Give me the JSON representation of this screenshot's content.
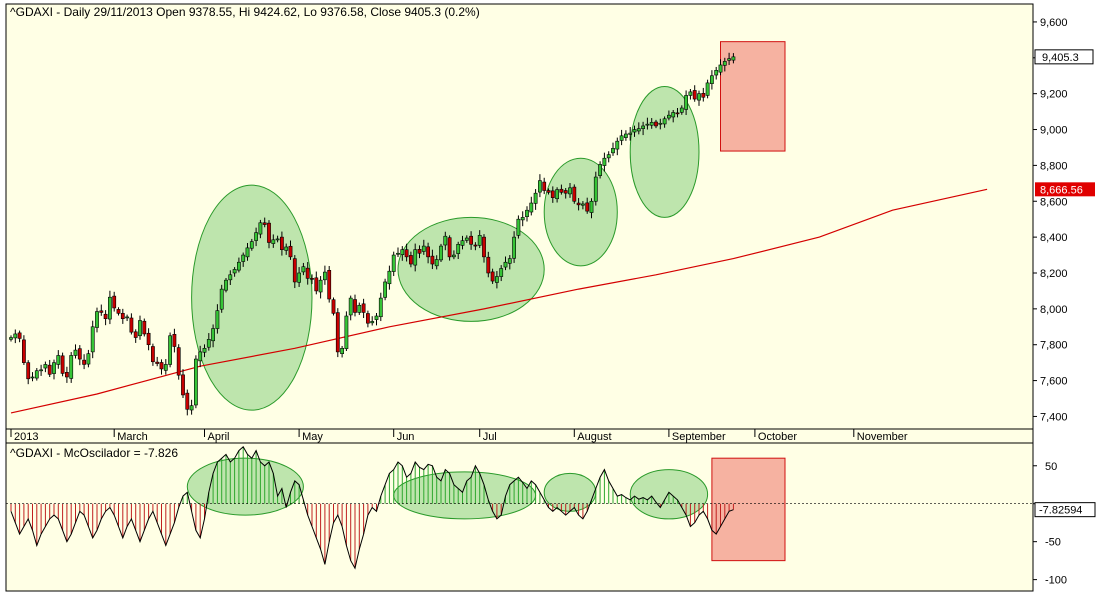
{
  "colors": {
    "panel_bg": "#ffffe5",
    "frame": "#000000",
    "ma_line": "#d40000",
    "candle_up": "#36c436",
    "candle_down": "#c80000",
    "osc_pos": "#2ea82e",
    "osc_neg": "#c02020",
    "ellipse_fill": "#a8dc9a",
    "ellipse_stroke": "#2a9a2a",
    "box_fill": "#f5a595",
    "box_stroke": "#d01010",
    "tag_bg": "#ffffff",
    "ma_tag_bg": "#e00000"
  },
  "chart_data": [
    {
      "type": "candlestick",
      "title": "^GDAXI - Daily 29/11/2013 Open 9378.55, Hi 9424.62, Lo 9376.58, Close 9405.3 (0.2%)",
      "ylim": [
        7330,
        9700
      ],
      "y_ticks": [
        7400,
        7600,
        7800,
        8000,
        8200,
        8400,
        8600,
        8800,
        9000,
        9200,
        9400,
        9600
      ],
      "y_tick_labels": [
        "7,400",
        "7,600",
        "7,800",
        "8,000",
        "8,200",
        "8,400",
        "8,600",
        "8,800",
        "9,000",
        "9,200",
        "9,400",
        "9,600"
      ],
      "x_labels": [
        {
          "label": "2013",
          "index": 0
        },
        {
          "label": "March",
          "index": 24
        },
        {
          "label": "April",
          "index": 45
        },
        {
          "label": "May",
          "index": 67
        },
        {
          "label": "Jun",
          "index": 89
        },
        {
          "label": "Jul",
          "index": 109
        },
        {
          "label": "August",
          "index": 131
        },
        {
          "label": "September",
          "index": 153
        },
        {
          "label": "October",
          "index": 173
        },
        {
          "label": "November",
          "index": 196
        }
      ],
      "close_tag": "9,405.3",
      "close_value": 9405.3,
      "ma_tag": "8,666.56",
      "ma_value": 8666.56,
      "closes": [
        7840,
        7860,
        7835,
        7700,
        7610,
        7620,
        7655,
        7660,
        7690,
        7635,
        7700,
        7740,
        7640,
        7620,
        7740,
        7770,
        7720,
        7690,
        7750,
        7900,
        7985,
        7980,
        7945,
        8065,
        8005,
        7975,
        7945,
        7955,
        7870,
        7840,
        7935,
        7860,
        7800,
        7705,
        7695,
        7665,
        7690,
        7850,
        7790,
        7630,
        7520,
        7440,
        7460,
        7720,
        7760,
        7780,
        7830,
        7890,
        7990,
        8110,
        8160,
        8190,
        8220,
        8260,
        8300,
        8340,
        8375,
        8425,
        8480,
        8470,
        8370,
        8385,
        8390,
        8330,
        8345,
        8290,
        8150,
        8200,
        8235,
        8170,
        8165,
        8100,
        8160,
        8205,
        8055,
        7975,
        7760,
        7780,
        7960,
        8060,
        7980,
        8020,
        7980,
        7920,
        7930,
        7960,
        8060,
        8150,
        8210,
        8300,
        8310,
        8330,
        8290,
        8250,
        8330,
        8310,
        8350,
        8290,
        8250,
        8275,
        8350,
        8405,
        8290,
        8300,
        8360,
        8380,
        8395,
        8360,
        8350,
        8410,
        8290,
        8200,
        8155,
        8180,
        8225,
        8260,
        8280,
        8400,
        8500,
        8510,
        8550,
        8590,
        8645,
        8715,
        8660,
        8650,
        8620,
        8665,
        8650,
        8645,
        8675,
        8600,
        8580,
        8585,
        8545,
        8600,
        8735,
        8805,
        8840,
        8860,
        8895,
        8935,
        8965,
        8975,
        8980,
        9000,
        9005,
        9020,
        9030,
        9040,
        9020,
        9035,
        9060,
        9080,
        9095,
        9090,
        9120,
        9190,
        9210,
        9170,
        9200,
        9180,
        9260,
        9300,
        9330,
        9360,
        9380,
        9395,
        9405.3
      ],
      "ma_points": [
        [
          0,
          7420
        ],
        [
          20,
          7525
        ],
        [
          44,
          7680
        ],
        [
          66,
          7780
        ],
        [
          88,
          7900
        ],
        [
          110,
          8000
        ],
        [
          132,
          8110
        ],
        [
          150,
          8190
        ],
        [
          168,
          8280
        ],
        [
          188,
          8400
        ],
        [
          205,
          8550
        ],
        [
          227,
          8666.56
        ]
      ],
      "highlight_ellipses": [
        [
          42,
          70,
          7435,
          8690
        ],
        [
          90,
          124,
          7930,
          8510
        ],
        [
          124,
          141,
          8240,
          8840
        ],
        [
          144,
          160,
          8510,
          9240
        ]
      ],
      "highlight_box": [
        165,
        180,
        8880,
        9490
      ]
    },
    {
      "type": "bar",
      "title": "^GDAXI - McOscilador = -7.826",
      "ylim": [
        -115,
        80
      ],
      "y_ticks": [
        -100,
        -50,
        0,
        50
      ],
      "y_tick_labels": [
        "-100",
        "-50",
        "",
        "50"
      ],
      "last_tag": "-7.82594",
      "last_value": -7.82594,
      "values": [
        -10,
        -25,
        -40,
        -30,
        -20,
        -35,
        -55,
        -40,
        -30,
        -20,
        -15,
        -20,
        -35,
        -50,
        -40,
        -25,
        -10,
        -15,
        -30,
        -45,
        -35,
        -20,
        -10,
        -5,
        -15,
        -30,
        -45,
        -30,
        -20,
        -35,
        -50,
        -35,
        -20,
        -10,
        -25,
        -40,
        -55,
        -40,
        -25,
        -5,
        10,
        15,
        -10,
        -35,
        -45,
        -20,
        15,
        40,
        55,
        60,
        65,
        55,
        60,
        70,
        75,
        65,
        60,
        70,
        55,
        50,
        55,
        40,
        10,
        20,
        -5,
        15,
        30,
        25,
        5,
        -15,
        -30,
        -45,
        -60,
        -80,
        -50,
        -25,
        -15,
        -30,
        -55,
        -75,
        -85,
        -60,
        -40,
        -15,
        -5,
        -10,
        10,
        25,
        40,
        45,
        55,
        50,
        35,
        40,
        55,
        48,
        45,
        52,
        50,
        35,
        30,
        45,
        40,
        25,
        20,
        15,
        30,
        35,
        50,
        40,
        25,
        5,
        -10,
        -20,
        -15,
        10,
        25,
        30,
        35,
        28,
        20,
        30,
        25,
        15,
        5,
        -5,
        -10,
        -5,
        -10,
        -15,
        -10,
        -5,
        -15,
        -20,
        -10,
        5,
        20,
        35,
        45,
        30,
        20,
        10,
        12,
        8,
        5,
        10,
        6,
        8,
        5,
        10,
        2,
        -5,
        5,
        15,
        10,
        5,
        -5,
        -15,
        -30,
        -25,
        -15,
        -10,
        -20,
        -35,
        -40,
        -30,
        -20,
        -10,
        -7.826
      ],
      "highlight_ellipses": [
        [
          41,
          68,
          -15,
          60
        ],
        [
          89,
          122,
          -20,
          42
        ],
        [
          124,
          136,
          -10,
          40
        ],
        [
          144,
          162,
          -20,
          45
        ]
      ],
      "highlight_box": [
        163,
        180,
        -75,
        60
      ]
    }
  ]
}
